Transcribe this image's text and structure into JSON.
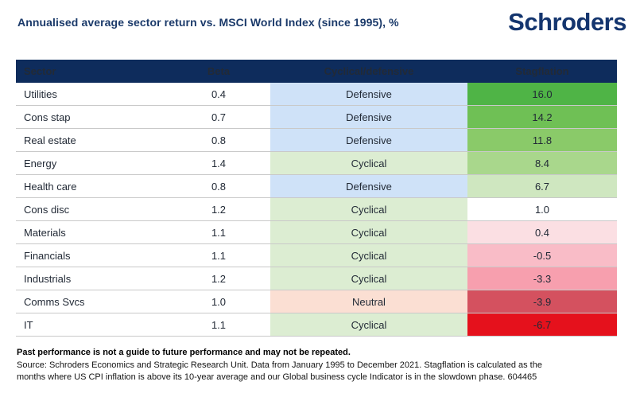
{
  "title": "Annualised average sector return vs. MSCI World Index (since 1995), %",
  "logo_text": "Schroders",
  "colors": {
    "header_bg": "#0e2c5c",
    "defensive_bg": "#cfe2f8",
    "cyclical_bg": "#dcedd2",
    "neutral_bg": "#fbdfd3",
    "stagflation_bgs": [
      "#4fb446",
      "#6fc055",
      "#8aca69",
      "#a9d78c",
      "#cfe7c0",
      "#ffffff",
      "#fbdfe3",
      "#f9bcc7",
      "#f79fae",
      "#d4515f",
      "#e5111c"
    ]
  },
  "chart_data": {
    "type": "table",
    "title": "Annualised average sector return vs. MSCI World Index (since 1995), %",
    "columns": [
      "Sector",
      "Beta",
      "Cyclical/defensive",
      "Stagflation"
    ],
    "rows": [
      [
        "Utilities",
        0.4,
        "Defensive",
        16.0
      ],
      [
        "Cons stap",
        0.7,
        "Defensive",
        14.2
      ],
      [
        "Real estate",
        0.8,
        "Defensive",
        11.8
      ],
      [
        "Energy",
        1.4,
        "Cyclical",
        8.4
      ],
      [
        "Health care",
        0.8,
        "Defensive",
        6.7
      ],
      [
        "Cons disc",
        1.2,
        "Cyclical",
        1.0
      ],
      [
        "Materials",
        1.1,
        "Cyclical",
        0.4
      ],
      [
        "Financials",
        1.1,
        "Cyclical",
        -0.5
      ],
      [
        "Industrials",
        1.2,
        "Cyclical",
        -3.3
      ],
      [
        "Comms Svcs",
        1.0,
        "Neutral",
        -3.9
      ],
      [
        "IT",
        1.1,
        "Cyclical",
        -6.7
      ]
    ]
  },
  "footer": {
    "disclaimer": "Past performance is not a guide to future performance and may not be repeated.",
    "source_lines": [
      "Source: Schroders Economics and Strategic Research Unit. Data from January 1995 to December 2021. Stagflation is calculated as the",
      "months where US CPI inflation is above its 10-year average and our Global business cycle Indicator is in the slowdown phase. 604465"
    ]
  }
}
